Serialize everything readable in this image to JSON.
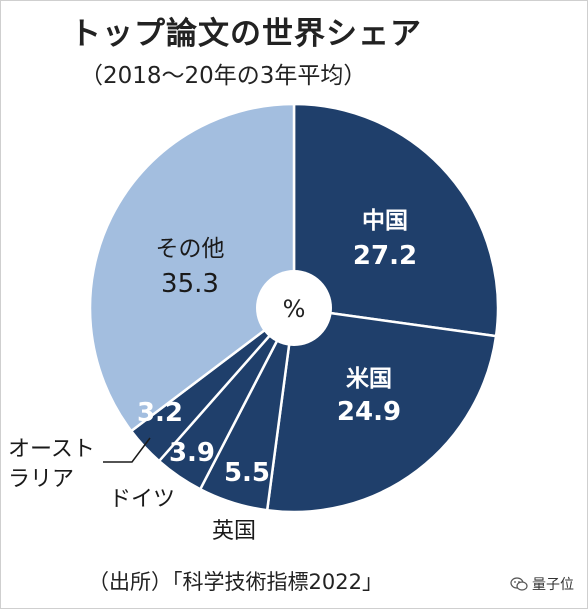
{
  "title": "トップ論文の世界シェア",
  "subtitle": "（2018〜20年の3年平均）",
  "source": "（出所）「科学技術指標2022」",
  "watermark": "量子位",
  "chart_data": {
    "type": "pie",
    "unit": "%",
    "slices": [
      {
        "name": "中国",
        "value": 27.2,
        "color": "#1f3f6b"
      },
      {
        "name": "米国",
        "value": 24.9,
        "color": "#1f3f6b"
      },
      {
        "name": "英国",
        "value": 5.5,
        "color": "#1f3f6b"
      },
      {
        "name": "ドイツ",
        "value": 3.9,
        "color": "#1f3f6b"
      },
      {
        "name": "オーストラリア",
        "value": 3.2,
        "color": "#1f3f6b"
      },
      {
        "name": "その他",
        "value": 35.3,
        "color": "#a3bedf"
      }
    ],
    "slice_separator_color": "#ffffff",
    "center_hole_color": "#ffffff",
    "outside_labels": {
      "uk": "英国",
      "germany": "ドイツ",
      "australia_line1": "オースト",
      "australia_line2": "ラリア"
    }
  }
}
